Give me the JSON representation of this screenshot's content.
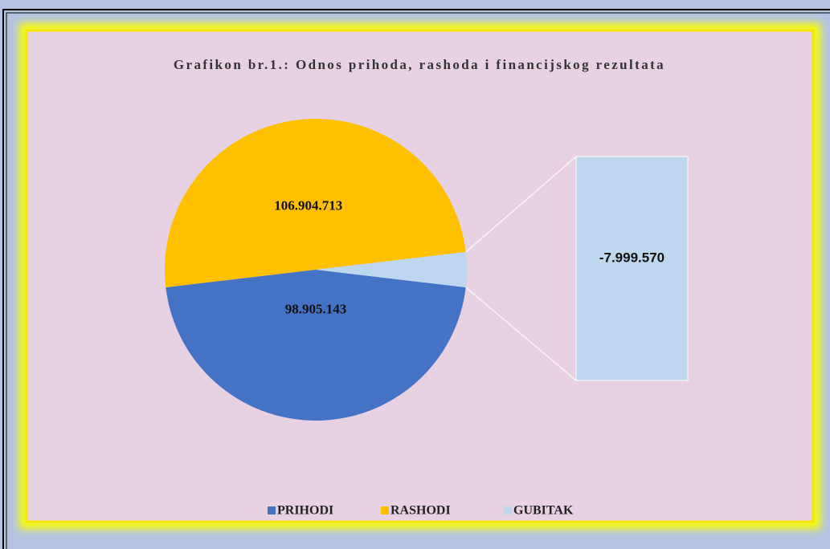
{
  "chart_data": {
    "type": "pie",
    "title": "Grafikon br.1.: Odnos prihoda, rashoda i financijskog rezultata",
    "categories": [
      "PRIHODI",
      "RASHODI",
      "GUBITAK"
    ],
    "values": [
      98905143,
      106904713,
      -7999570
    ],
    "value_labels": [
      "98.905.143",
      "106.904.713",
      "-7.999.570"
    ],
    "colors": [
      "#4472c4",
      "#ffc000",
      "#bdd7ee"
    ]
  }
}
